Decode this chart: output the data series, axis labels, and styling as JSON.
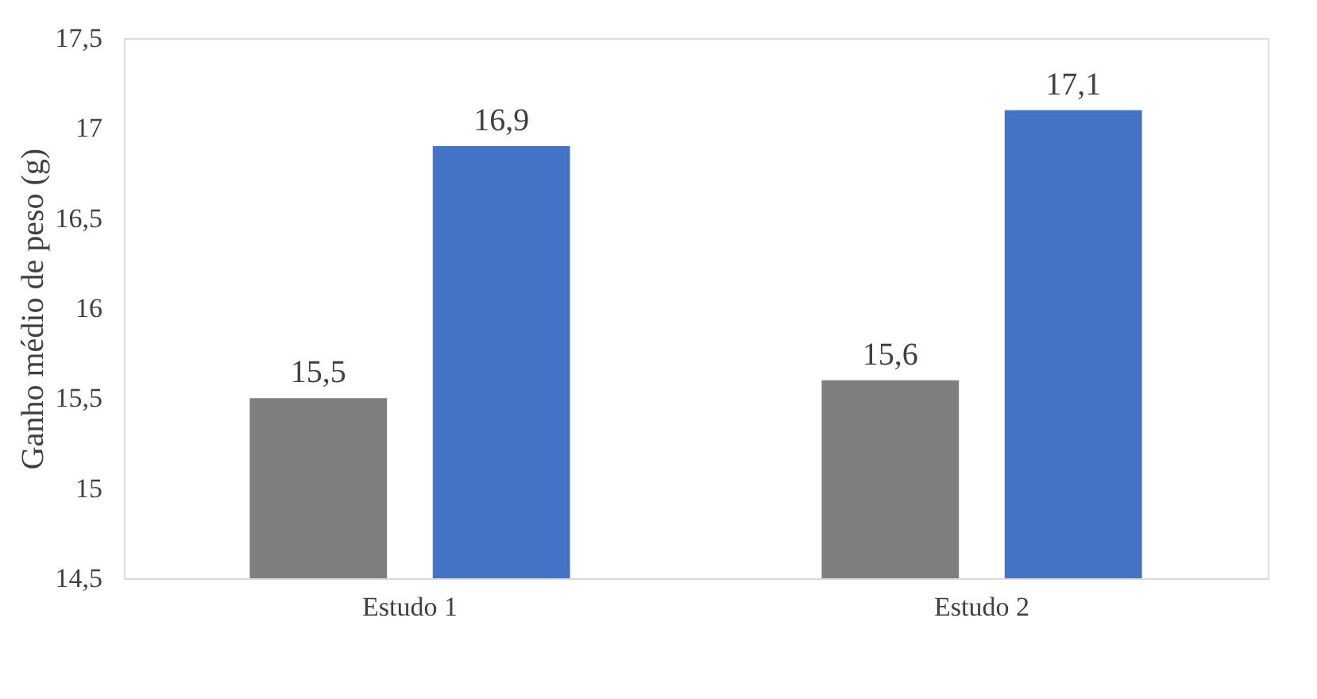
{
  "chart_data": {
    "type": "bar",
    "ylabel": "Ganho médio de peso (g)",
    "categories": [
      "Estudo 1",
      "Estudo 2"
    ],
    "series": [
      {
        "color": "#7f7f7f",
        "values": [
          15.5,
          15.6
        ],
        "value_labels": [
          "15,5",
          "15,6"
        ]
      },
      {
        "color": "#4472c4",
        "values": [
          16.9,
          17.1
        ],
        "value_labels": [
          "16,9",
          "17,1"
        ]
      }
    ],
    "ylim": [
      14.5,
      17.5
    ],
    "yticks": [
      {
        "value": 14.5,
        "label": "14,5"
      },
      15,
      {
        "value": 15.5,
        "label": "15,5"
      },
      16,
      {
        "value": 16.5,
        "label": "16,5"
      },
      17,
      {
        "value": 17.5,
        "label": "17,5"
      }
    ],
    "grid": false,
    "legend": false
  }
}
